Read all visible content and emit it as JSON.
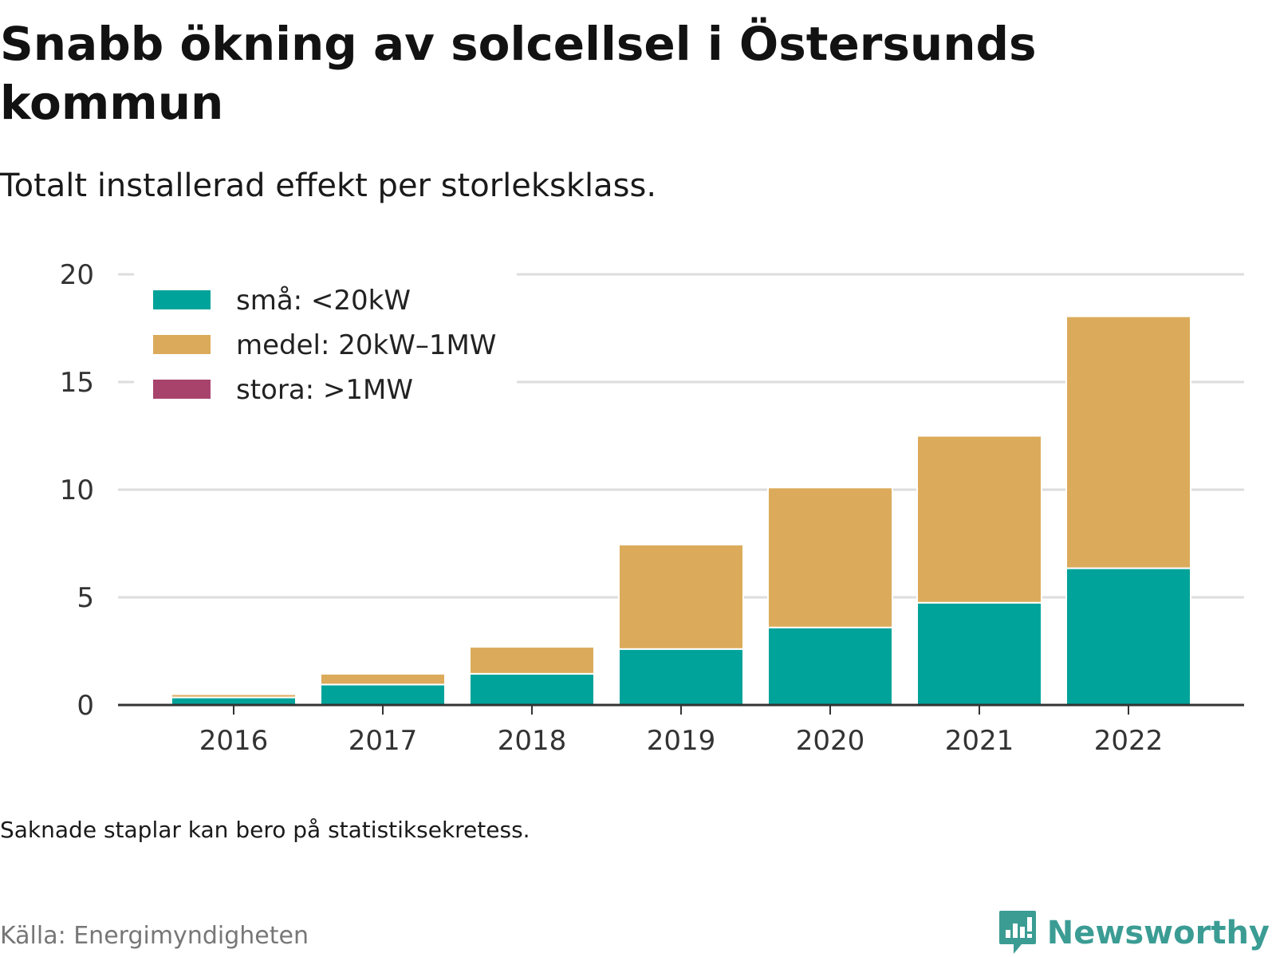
{
  "header": {
    "title": "Snabb ökning av solcellsel i Östersunds kommun",
    "subtitle": "Totalt installerad effekt per storleksklass."
  },
  "footer": {
    "note": "Saknade staplar kan bero på statistiksekretess.",
    "source": "Källa: Energimyndigheten",
    "brand": "Newsworthy"
  },
  "colors": {
    "small": "#00a39a",
    "medium": "#dbab5b",
    "large": "#a8436c",
    "brand": "#3b9c94",
    "grid": "#dddddd"
  },
  "chart_data": {
    "type": "bar",
    "stacked": true,
    "categories": [
      "2016",
      "2017",
      "2018",
      "2019",
      "2020",
      "2021",
      "2022"
    ],
    "series": [
      {
        "name": "små: <20kW",
        "color": "#00a39a",
        "values": [
          0.35,
          0.95,
          1.45,
          2.6,
          3.6,
          4.75,
          6.35
        ]
      },
      {
        "name": "medel: 20kW–1MW",
        "color": "#dbab5b",
        "values": [
          0.15,
          0.5,
          1.25,
          4.85,
          6.5,
          7.75,
          11.7
        ]
      },
      {
        "name": "stora: >1MW",
        "color": "#a8436c",
        "values": [
          0.05,
          0,
          0,
          0,
          0,
          0,
          0
        ]
      }
    ],
    "ylim": [
      0,
      20
    ],
    "yticks": [
      0,
      5,
      10,
      15,
      20
    ],
    "grid": true,
    "legend_position": "top-left"
  }
}
